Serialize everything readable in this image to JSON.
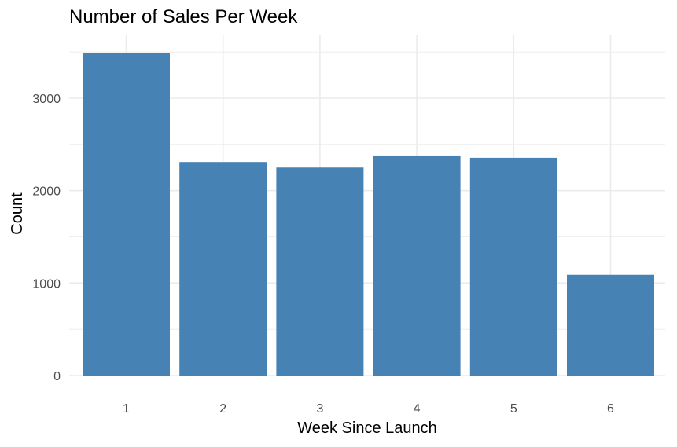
{
  "chart_data": {
    "type": "bar",
    "title": "Number of Sales Per Week",
    "xlabel": "Week Since Launch",
    "ylabel": "Count",
    "categories": [
      "1",
      "2",
      "3",
      "4",
      "5",
      "6"
    ],
    "values": [
      3490,
      2310,
      2250,
      2380,
      2355,
      1090
    ],
    "ylim": [
      0,
      3490
    ],
    "yticks": [
      0,
      1000,
      2000,
      3000
    ],
    "grid": true,
    "legend": "none",
    "bar_color": "#4682B4",
    "grid_color": "#EBEBEB",
    "tick_label_color": "#4D4D4D"
  }
}
